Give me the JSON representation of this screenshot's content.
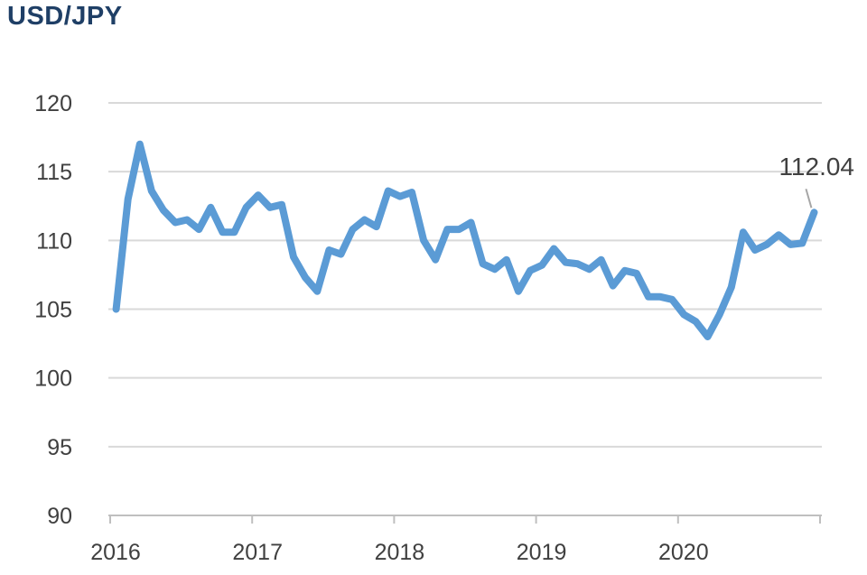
{
  "chart_data": {
    "type": "line",
    "title": "USD/JPY",
    "xlabel": "",
    "ylabel": "",
    "ylim": [
      90,
      120
    ],
    "yticks": [
      120,
      115,
      110,
      105,
      100,
      95,
      90
    ],
    "xticks": [
      "2016",
      "2017",
      "2018",
      "2019",
      "2020"
    ],
    "grid": true,
    "line_color": "#5b9bd5",
    "annotation": {
      "text": "112.04",
      "x": "2020-12",
      "y": 112.04
    },
    "series": [
      {
        "x": [
          "2016-01",
          "2016-02",
          "2016-03",
          "2016-04",
          "2016-05",
          "2016-06",
          "2016-07",
          "2016-08",
          "2016-09",
          "2016-10",
          "2016-11",
          "2016-12",
          "2017-01",
          "2017-02",
          "2017-03",
          "2017-04",
          "2017-05",
          "2017-06",
          "2017-07",
          "2017-08",
          "2017-09",
          "2017-10",
          "2017-11",
          "2017-12",
          "2018-01",
          "2018-02",
          "2018-03",
          "2018-04",
          "2018-05",
          "2018-06",
          "2018-07",
          "2018-08",
          "2018-09",
          "2018-10",
          "2018-11",
          "2018-12",
          "2019-01",
          "2019-02",
          "2019-03",
          "2019-04",
          "2019-05",
          "2019-06",
          "2019-07",
          "2019-08",
          "2019-09",
          "2019-10",
          "2019-11",
          "2019-12",
          "2020-01",
          "2020-02",
          "2020-03",
          "2020-04",
          "2020-05",
          "2020-06",
          "2020-07",
          "2020-08",
          "2020-09",
          "2020-10",
          "2020-11",
          "2020-12"
        ],
        "values": [
          105.0,
          113.0,
          117.0,
          113.6,
          112.2,
          111.3,
          111.5,
          110.8,
          112.4,
          110.6,
          110.6,
          112.4,
          113.3,
          112.4,
          112.6,
          108.8,
          107.3,
          106.3,
          109.3,
          109.0,
          110.8,
          111.5,
          111.0,
          113.6,
          113.2,
          113.5,
          110.0,
          108.6,
          110.8,
          110.8,
          111.3,
          108.3,
          107.9,
          108.6,
          106.3,
          107.8,
          108.2,
          109.4,
          108.4,
          108.3,
          107.9,
          108.6,
          106.7,
          107.8,
          107.6,
          105.9,
          105.9,
          105.7,
          104.6,
          104.1,
          103.0,
          104.6,
          106.6,
          110.6,
          109.3,
          109.7,
          110.4,
          109.7,
          109.8,
          112.04
        ]
      }
    ]
  }
}
